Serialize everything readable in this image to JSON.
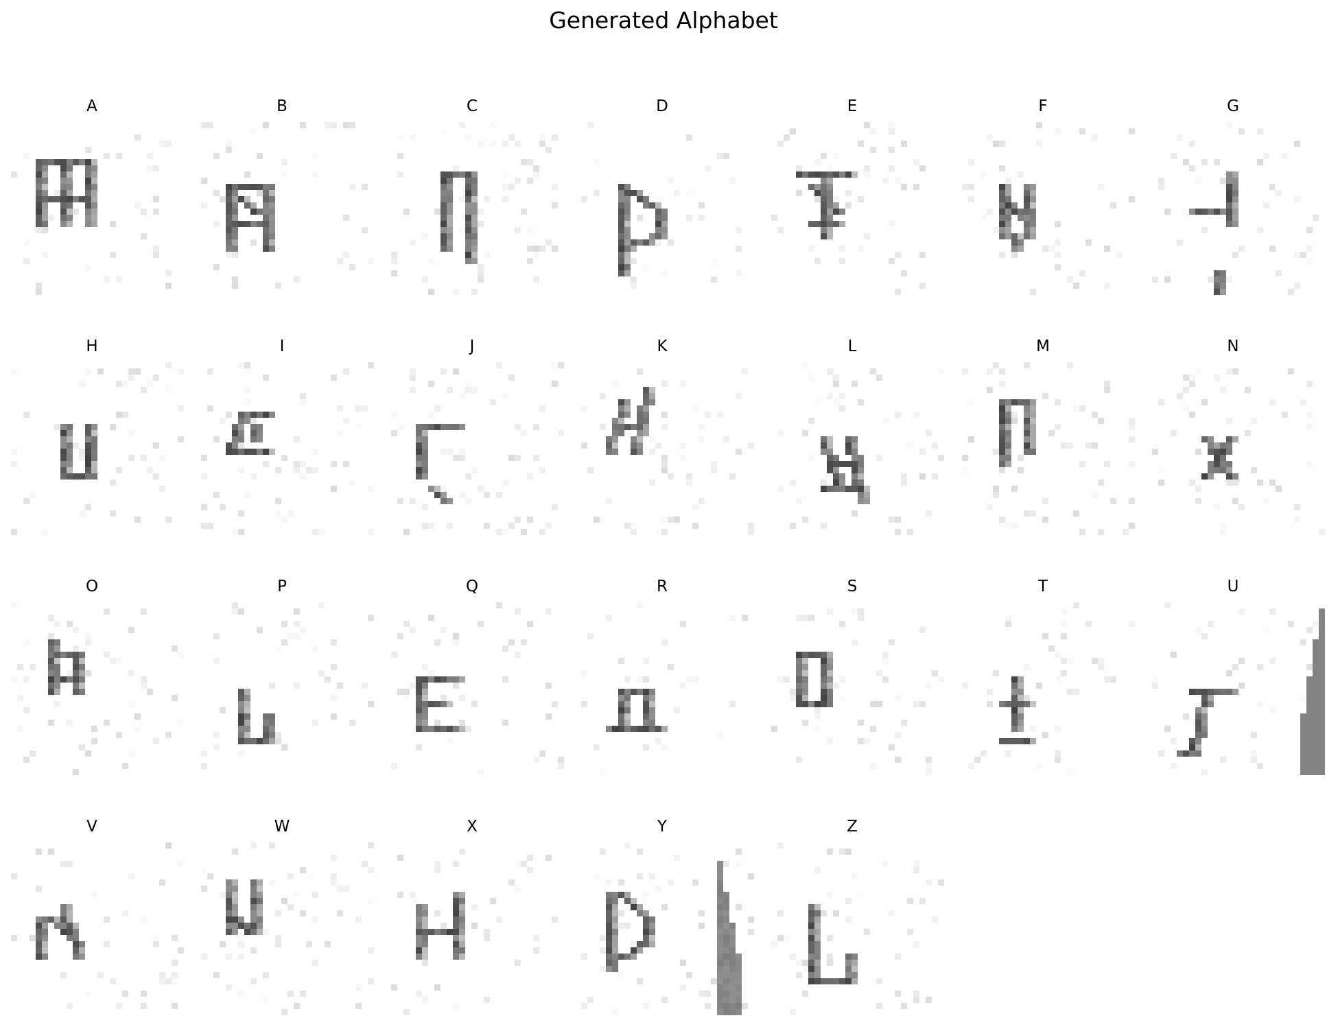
{
  "figure": {
    "title": "Generated Alphabet"
  },
  "panels": [
    {
      "letter": "A"
    },
    {
      "letter": "B"
    },
    {
      "letter": "C"
    },
    {
      "letter": "D"
    },
    {
      "letter": "E"
    },
    {
      "letter": "F"
    },
    {
      "letter": "G"
    },
    {
      "letter": "H"
    },
    {
      "letter": "I"
    },
    {
      "letter": "J"
    },
    {
      "letter": "K"
    },
    {
      "letter": "L"
    },
    {
      "letter": "M"
    },
    {
      "letter": "N"
    },
    {
      "letter": "O"
    },
    {
      "letter": "P"
    },
    {
      "letter": "Q"
    },
    {
      "letter": "R"
    },
    {
      "letter": "S"
    },
    {
      "letter": "T"
    },
    {
      "letter": "U"
    },
    {
      "letter": "V"
    },
    {
      "letter": "W"
    },
    {
      "letter": "X"
    },
    {
      "letter": "Y"
    },
    {
      "letter": "Z"
    }
  ],
  "colors": {
    "background": "#ffffff",
    "ink_dark": "#4a4a4a",
    "ink_mid": "#8a8a8a",
    "ink_light": "#d9d9d9",
    "ink_faint": "#efefef"
  }
}
